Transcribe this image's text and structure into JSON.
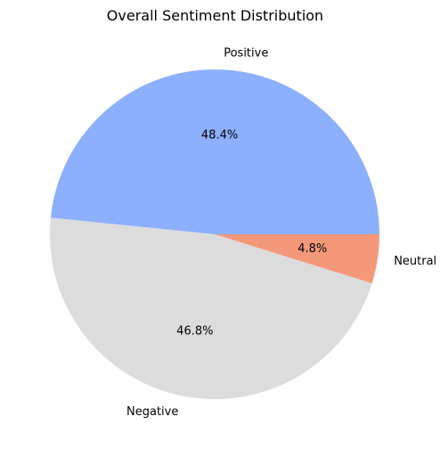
{
  "chart_data": {
    "type": "pie",
    "title": "Overall Sentiment Distribution",
    "labels": [
      "Positive",
      "Negative",
      "Neutral"
    ],
    "values": [
      48.4,
      46.8,
      4.8
    ],
    "percent_labels": [
      "48.4%",
      "46.8%",
      "4.8%"
    ],
    "colors": [
      "#8caffe",
      "#dcdcdc",
      "#f4987a"
    ],
    "start_angle_deg": 0,
    "direction": "counterclockwise",
    "legend": "none"
  }
}
